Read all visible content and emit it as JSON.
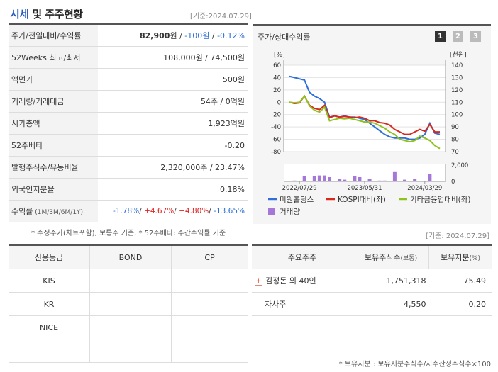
{
  "header": {
    "title_a": "시세",
    "title_b": " 및 주주현황",
    "date": "[기준:2024.07.29]"
  },
  "price_table": {
    "rows": [
      {
        "label": "주가/전일대비/수익률",
        "v1": "82,900",
        "v1u": "원",
        "sep1": " / ",
        "v2": "-100원",
        "sep2": " / ",
        "v3": "-0.12%"
      },
      {
        "label": "52Weeks 최고/최저",
        "value": "108,000원 / 74,500원"
      },
      {
        "label": "액면가",
        "value": "500원"
      },
      {
        "label": "거래량/거래대금",
        "value": "54주 / 0억원"
      },
      {
        "label": "시가총액",
        "value": "1,923억원"
      },
      {
        "label": "52주베타",
        "value": "-0.20"
      },
      {
        "label": "발행주식수/유동비율",
        "value": "2,320,000주 / 23.47%"
      },
      {
        "label": "외국인지분율",
        "value": "0.18%"
      }
    ],
    "return_row": {
      "label": "수익률",
      "label_small": " (1M/3M/6M/1Y)",
      "r1": "-1.78%",
      "r2": "+4.67%",
      "r3": "+4.80%",
      "r4": "-13.65%",
      "sep": "/ "
    }
  },
  "note1": "* 수정주가(차트포함), 보통주 기준, * 52주베타: 주간수익률 기준",
  "chart": {
    "title": "주가/상대수익률",
    "pages": [
      "1",
      "2",
      "3"
    ],
    "left_unit": "[%]",
    "right_unit": "[천원]",
    "vol_tick": "2,000",
    "vol_zero": "0",
    "legend": {
      "s1": "미원홀딩스",
      "s2": "KOSPI대비(좌)",
      "s3": "기타금융업대비(좌)",
      "s4": "거래량"
    },
    "colors": {
      "s1": "#2e6fd9",
      "s2": "#d8281d",
      "s3": "#8dc21f",
      "vol": "#a577d8"
    }
  },
  "chart_data": {
    "type": "line",
    "x_ticks": [
      "2022/07/29",
      "2023/05/31",
      "2024/03/29"
    ],
    "left_axis": {
      "ticks": [
        60,
        40,
        20,
        0,
        -20,
        -40,
        -60,
        -80
      ],
      "range": [
        -80,
        60
      ]
    },
    "right_axis": {
      "ticks": [
        140,
        130,
        120,
        110,
        100,
        90,
        80,
        70
      ],
      "range": [
        70,
        140
      ]
    },
    "series": [
      {
        "name": "미원홀딩스",
        "axis": "right",
        "values": [
          131,
          130,
          129,
          128,
          118,
          115,
          113,
          110,
          98,
          99,
          98,
          99,
          98,
          98,
          97,
          96,
          93,
          90,
          87,
          84,
          82,
          81,
          81,
          81,
          80,
          80,
          81,
          84,
          93,
          85,
          84
        ]
      },
      {
        "name": "KOSPI대비(좌)",
        "axis": "left",
        "values": [
          0,
          -2,
          -1,
          10,
          -5,
          -10,
          -12,
          -5,
          -25,
          -22,
          -24,
          -23,
          -24,
          -25,
          -24,
          -26,
          -30,
          -30,
          -33,
          -34,
          -37,
          -44,
          -48,
          -52,
          -52,
          -48,
          -44,
          -47,
          -36,
          -48,
          -48
        ]
      },
      {
        "name": "기타금융업대비(좌)",
        "axis": "left",
        "values": [
          0,
          -1,
          0,
          10,
          -6,
          -13,
          -16,
          -8,
          -30,
          -28,
          -26,
          -27,
          -26,
          -28,
          -30,
          -32,
          -32,
          -34,
          -38,
          -42,
          -48,
          -52,
          -60,
          -62,
          -64,
          -62,
          -55,
          -58,
          -62,
          -70,
          -75
        ]
      }
    ],
    "volume": {
      "max": 2000,
      "values": [
        0,
        100,
        0,
        600,
        0,
        600,
        700,
        700,
        500,
        0,
        300,
        200,
        0,
        600,
        500,
        0,
        300,
        0,
        100,
        100,
        0,
        1100,
        0,
        200,
        0,
        300,
        0,
        0,
        900,
        0,
        0
      ]
    }
  },
  "credit": {
    "headers": [
      "신용등급",
      "BOND",
      "CP"
    ],
    "rows": [
      [
        "KIS",
        "",
        ""
      ],
      [
        "KR",
        "",
        ""
      ],
      [
        "NICE",
        "",
        ""
      ],
      [
        "",
        "",
        ""
      ]
    ]
  },
  "holders": {
    "headers": [
      "주요주주",
      "보유주식수",
      "(보통)",
      "보유지분",
      "(%)"
    ],
    "rows": [
      {
        "name": "김정돈 외 40인",
        "shares": "1,751,318",
        "pct": "75.49",
        "expand": "+"
      },
      {
        "name": "자사주",
        "shares": "4,550",
        "pct": "0.20"
      }
    ]
  },
  "note2": "* 보유지분 : 보유지분주식수/지수산정주식수×100",
  "date2": "[기준: 2024.07.29]"
}
